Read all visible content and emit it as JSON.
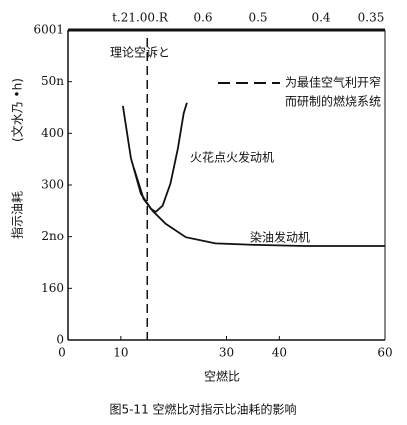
{
  "chart_data": {
    "type": "line",
    "xlabel": "空燃比",
    "ylabel": "指示油耗",
    "yunit": "(文水乃 •h)",
    "caption": "图5-11   空燃比对指示比油耗的影响",
    "top_labels": [
      "t.21.00.R",
      "0.6",
      "0.5",
      "0.4",
      "0.35"
    ],
    "xlim": [
      0,
      60
    ],
    "xticks": [
      0,
      10,
      30,
      40,
      60
    ],
    "ylim": [
      0,
      600
    ],
    "yticks": [
      {
        "value": 600,
        "label": "6001"
      },
      {
        "value": 500,
        "label": "50n"
      },
      400,
      300,
      {
        "value": 200,
        "label": "2no"
      },
      {
        "value": 100,
        "label": "160"
      },
      0
    ],
    "reference_line": {
      "label": "理论空诉と",
      "x": 15
    },
    "legend": {
      "line1": "为最佳空气利开窄",
      "line2": "而研制的燃烧系统"
    },
    "series": [
      {
        "name": "火花点火发动机",
        "color": "#111111",
        "x": [
          10.4,
          11.9,
          13.8,
          15.7,
          16.6,
          17.9,
          19.4,
          20.8,
          21.9,
          22.5
        ],
        "values": [
          453,
          352,
          283,
          254,
          248,
          260,
          303,
          371,
          439,
          459
        ]
      },
      {
        "name": "染油发动机",
        "color": "#111111",
        "x": [
          12.5,
          14.3,
          16,
          18.5,
          22.3,
          27.9,
          35.5,
          44.9,
          60
        ],
        "values": [
          332,
          273,
          250,
          225,
          199,
          187,
          184,
          182,
          182
        ]
      }
    ]
  }
}
